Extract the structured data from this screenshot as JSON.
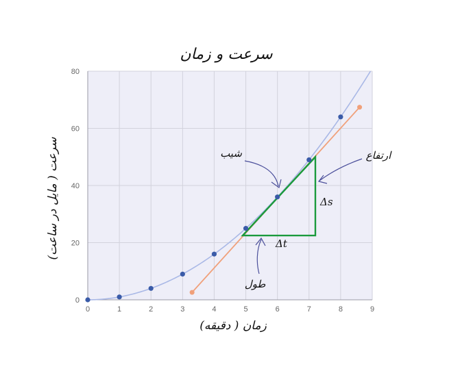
{
  "chart_data": {
    "type": "scatter",
    "title": "سرعت و زمان",
    "xlabel": "زمان ( دقیقه)",
    "ylabel": "سرعت ( مایل در ساعت)",
    "xlim": [
      0,
      9
    ],
    "ylim": [
      0,
      80
    ],
    "xticks": [
      0,
      1,
      2,
      3,
      4,
      5,
      6,
      7,
      8,
      9
    ],
    "yticks": [
      0,
      20,
      40,
      60,
      80
    ],
    "grid": true,
    "points": {
      "x": [
        0,
        1,
        2,
        3,
        4,
        5,
        6,
        7,
        8
      ],
      "y": [
        0,
        1,
        4,
        9,
        16,
        25,
        36,
        49,
        64
      ]
    },
    "curve": {
      "formula": "y = x^2",
      "x_range": [
        0,
        9
      ]
    },
    "tangent_line": {
      "x": [
        3.3,
        8.6
      ],
      "y": [
        2.6,
        67.4
      ]
    },
    "slope_triangle": {
      "x1": 4.9,
      "y1": 22.5,
      "x2": 7.2,
      "y2": 50
    },
    "annotations": {
      "slope": "شیب",
      "rise": "ارتفاع",
      "run": "طول",
      "delta_s": "Δs",
      "delta_t": "Δt"
    },
    "colors": {
      "plot_bg": "#eeeef8",
      "grid": "#d2d2dc",
      "curve": "#a9b8e6",
      "points": "#3a5ba8",
      "tangent": "#f0a07a",
      "triangle": "#1a9a3c",
      "arrow": "#4a4e9a"
    }
  }
}
